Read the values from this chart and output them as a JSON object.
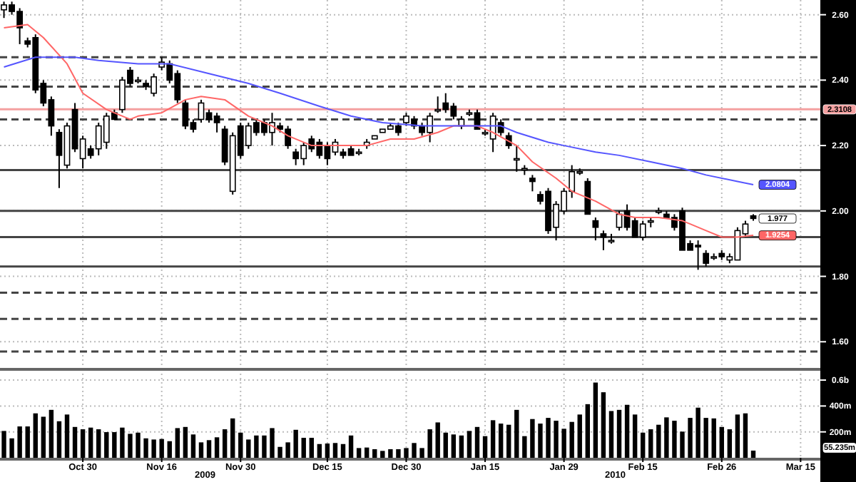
{
  "chart_data": [
    {
      "type": "candlestick",
      "color": "#000000",
      "categories": [
        null,
        null,
        null,
        null,
        null,
        null,
        null,
        null,
        null,
        null,
        null,
        null,
        null,
        null,
        null,
        null,
        null,
        null,
        null,
        null,
        null,
        null,
        null,
        null,
        null,
        null,
        null,
        null,
        null,
        null,
        null,
        null,
        null,
        null,
        null,
        null,
        null,
        null,
        null,
        null,
        null,
        null,
        null,
        null,
        null,
        null,
        null,
        null,
        null,
        null,
        null,
        null,
        null,
        null,
        null,
        null,
        null,
        null,
        null,
        null,
        null,
        null,
        null,
        null,
        null,
        null,
        null,
        null,
        null,
        null,
        null,
        null,
        null,
        null,
        null,
        null,
        null,
        null,
        null,
        null,
        null,
        null,
        null,
        null,
        null,
        null,
        null,
        null,
        null,
        null,
        null,
        null,
        null,
        null,
        null,
        null,
        null,
        null,
        null,
        null,
        null,
        null,
        null,
        null
      ],
      "ohlc": [
        [
          2.615,
          2.64,
          2.59,
          2.63
        ],
        [
          2.63,
          2.64,
          2.6,
          2.61
        ],
        [
          2.61,
          2.62,
          2.51,
          2.56
        ],
        [
          2.52,
          2.53,
          2.5,
          2.51
        ],
        [
          2.53,
          2.54,
          2.36,
          2.37
        ],
        [
          2.39,
          2.4,
          2.32,
          2.33
        ],
        [
          2.34,
          2.35,
          2.23,
          2.26
        ],
        [
          2.24,
          2.25,
          2.07,
          2.17
        ],
        [
          2.14,
          2.27,
          2.13,
          2.26
        ],
        [
          2.31,
          2.33,
          2.18,
          2.19
        ],
        [
          2.16,
          2.23,
          2.13,
          2.22
        ],
        [
          2.19,
          2.2,
          2.16,
          2.17
        ],
        [
          2.19,
          2.27,
          2.17,
          2.26
        ],
        [
          2.21,
          2.3,
          2.19,
          2.29
        ],
        [
          2.3,
          2.31,
          2.28,
          2.28
        ],
        [
          2.31,
          2.41,
          2.3,
          2.4
        ],
        [
          2.43,
          2.44,
          2.38,
          2.39
        ],
        [
          2.4,
          2.41,
          2.39,
          2.4
        ],
        [
          2.39,
          2.4,
          2.37,
          2.38
        ],
        [
          2.36,
          2.42,
          2.35,
          2.41
        ],
        [
          2.44,
          2.47,
          2.43,
          2.455
        ],
        [
          2.45,
          2.46,
          2.39,
          2.4
        ],
        [
          2.42,
          2.43,
          2.33,
          2.34
        ],
        [
          2.33,
          2.34,
          2.25,
          2.26
        ],
        [
          2.27,
          2.28,
          2.24,
          2.25
        ],
        [
          2.28,
          2.34,
          2.27,
          2.33
        ],
        [
          2.3,
          2.31,
          2.27,
          2.28
        ],
        [
          2.29,
          2.3,
          2.24,
          2.27
        ],
        [
          2.25,
          2.26,
          2.14,
          2.15
        ],
        [
          2.06,
          2.24,
          2.05,
          2.23
        ],
        [
          2.26,
          2.27,
          2.16,
          2.17
        ],
        [
          2.2,
          2.27,
          2.19,
          2.26
        ],
        [
          2.27,
          2.28,
          2.23,
          2.24
        ],
        [
          2.27,
          2.28,
          2.23,
          2.24
        ],
        [
          2.24,
          2.3,
          2.2,
          2.27
        ],
        [
          2.26,
          2.27,
          2.24,
          2.25
        ],
        [
          2.25,
          2.26,
          2.19,
          2.2
        ],
        [
          2.18,
          2.19,
          2.14,
          2.16
        ],
        [
          2.16,
          2.21,
          2.14,
          2.2
        ],
        [
          2.22,
          2.23,
          2.18,
          2.19
        ],
        [
          2.21,
          2.22,
          2.16,
          2.17
        ],
        [
          2.2,
          2.21,
          2.14,
          2.16
        ],
        [
          2.18,
          2.22,
          2.17,
          2.21
        ],
        [
          2.18,
          2.19,
          2.16,
          2.17
        ],
        [
          2.19,
          2.2,
          2.17,
          2.17
        ],
        [
          2.18,
          2.19,
          2.17,
          2.18
        ],
        [
          2.2,
          2.22,
          2.19,
          2.21
        ],
        [
          2.22,
          2.23,
          2.22,
          2.23
        ],
        [
          2.24,
          2.25,
          2.24,
          2.25
        ],
        [
          2.25,
          2.27,
          2.25,
          2.26
        ],
        [
          2.26,
          2.27,
          2.23,
          2.24
        ],
        [
          2.27,
          2.3,
          2.26,
          2.29
        ],
        [
          2.28,
          2.29,
          2.25,
          2.26
        ],
        [
          2.26,
          2.27,
          2.23,
          2.24
        ],
        [
          2.24,
          2.3,
          2.21,
          2.29
        ],
        [
          2.31,
          2.35,
          2.3,
          2.31
        ],
        [
          2.33,
          2.36,
          2.3,
          2.31
        ],
        [
          2.32,
          2.33,
          2.28,
          2.29
        ],
        [
          2.26,
          2.29,
          2.25,
          2.28
        ],
        [
          2.3,
          2.31,
          2.29,
          2.3
        ],
        [
          2.3,
          2.31,
          2.25,
          2.25
        ],
        [
          2.24,
          2.25,
          2.23,
          2.24
        ],
        [
          2.22,
          2.3,
          2.18,
          2.29
        ],
        [
          2.27,
          2.28,
          2.23,
          2.24
        ],
        [
          2.23,
          2.24,
          2.19,
          2.2
        ],
        [
          2.16,
          2.2,
          2.12,
          2.16
        ],
        [
          2.13,
          2.14,
          2.11,
          2.13
        ],
        [
          2.1,
          2.11,
          2.06,
          2.09
        ],
        [
          2.05,
          2.06,
          2.02,
          2.03
        ],
        [
          2.06,
          2.07,
          1.93,
          1.94
        ],
        [
          1.95,
          2.03,
          1.91,
          2.02
        ],
        [
          2,
          2.07,
          1.99,
          2.06
        ],
        [
          2.06,
          2.14,
          2.04,
          2.12
        ],
        [
          2.12,
          2.13,
          2.11,
          2.12
        ],
        [
          2.09,
          2.1,
          1.99,
          1.99
        ],
        [
          1.97,
          1.98,
          1.91,
          1.95
        ],
        [
          1.93,
          1.94,
          1.88,
          1.92
        ],
        [
          1.91,
          1.93,
          1.9,
          1.91
        ],
        [
          1.95,
          2,
          1.94,
          1.99
        ],
        [
          2,
          2.02,
          1.94,
          1.95
        ],
        [
          1.97,
          1.98,
          1.92,
          1.92
        ],
        [
          1.92,
          1.97,
          1.91,
          1.96
        ],
        [
          1.97,
          1.98,
          1.95,
          1.97
        ],
        [
          2,
          2.01,
          1.99,
          2
        ],
        [
          1.99,
          2,
          1.98,
          1.98
        ],
        [
          1.98,
          1.99,
          1.94,
          1.95
        ],
        [
          2,
          2.01,
          1.88,
          1.88
        ],
        [
          1.9,
          1.91,
          1.88,
          1.88
        ],
        [
          1.895,
          1.91,
          1.82,
          1.89
        ],
        [
          1.87,
          1.88,
          1.83,
          1.84
        ],
        [
          1.86,
          1.87,
          1.85,
          1.86
        ],
        [
          1.87,
          1.88,
          1.85,
          1.86
        ],
        [
          1.85,
          1.87,
          1.84,
          1.86
        ],
        [
          1.85,
          1.95,
          1.85,
          1.94
        ],
        [
          1.93,
          1.97,
          1.92,
          1.96
        ],
        [
          1.985,
          1.99,
          1.97,
          1.977
        ],
        null,
        null,
        null,
        null,
        null,
        null,
        null,
        null
      ],
      "series": [
        {
          "type": "line",
          "color": "#ff6666",
          "values": [
            2.56,
            null,
            null,
            2.57,
            null,
            2.53,
            null,
            null,
            2.45,
            null,
            2.36,
            null,
            null,
            2.31,
            null,
            null,
            2.28,
            2.29,
            null,
            null,
            2.3,
            null,
            null,
            2.34,
            null,
            2.35,
            null,
            null,
            2.34,
            null,
            null,
            2.29,
            null,
            null,
            2.26,
            null,
            2.23,
            null,
            null,
            2.2,
            null,
            null,
            2.2,
            null,
            2.2,
            null,
            2.2,
            null,
            null,
            2.22,
            null,
            null,
            2.22,
            null,
            null,
            2.24,
            null,
            2.26,
            null,
            null,
            2.26,
            null,
            2.24,
            null,
            null,
            2.2,
            null,
            2.15,
            null,
            null,
            2.1,
            null,
            2.06,
            null,
            null,
            2.03,
            null,
            null,
            1.99,
            null,
            1.98,
            null,
            null,
            1.98,
            null,
            null,
            1.97,
            1.96,
            null,
            1.94,
            null,
            1.92,
            null,
            1.92,
            null,
            1.9254,
            null,
            null,
            null,
            null,
            null,
            null,
            null,
            null
          ],
          "value_labels": [
            null,
            null,
            null,
            null,
            null,
            null,
            null,
            null,
            null,
            null,
            null,
            null,
            null,
            null,
            null,
            null,
            null,
            null,
            null,
            null,
            null,
            null,
            null,
            null,
            null,
            null,
            null,
            null,
            null,
            null,
            null,
            null,
            null,
            null,
            null,
            null,
            null,
            null,
            null,
            null,
            null,
            null,
            null,
            null,
            null,
            null,
            null,
            null,
            null,
            null,
            null,
            null,
            null,
            null,
            null,
            null,
            null,
            null,
            null,
            null,
            null,
            null,
            null,
            null,
            null,
            null,
            null,
            null,
            null,
            null,
            null,
            null,
            null,
            null,
            null,
            null,
            null,
            null,
            null,
            null,
            null,
            null,
            null,
            null,
            null,
            null,
            null,
            null,
            null,
            null,
            null,
            null,
            null,
            null,
            null,
            "1.9254",
            null,
            null,
            null,
            null,
            null,
            null,
            null,
            null
          ]
        },
        {
          "type": "line",
          "color": "#5555ff",
          "values": [
            2.44,
            null,
            null,
            null,
            2.47,
            null,
            null,
            null,
            null,
            2.47,
            null,
            null,
            2.46,
            null,
            null,
            null,
            null,
            2.45,
            null,
            null,
            null,
            2.45,
            null,
            null,
            null,
            null,
            2.42,
            null,
            null,
            null,
            null,
            2.39,
            null,
            null,
            null,
            2.36,
            null,
            null,
            null,
            null,
            2.32,
            null,
            null,
            null,
            2.29,
            null,
            null,
            null,
            2.27,
            null,
            null,
            null,
            null,
            2.26,
            null,
            null,
            null,
            2.26,
            null,
            null,
            null,
            2.26,
            null,
            2.26,
            null,
            2.24,
            null,
            null,
            null,
            2.21,
            null,
            2.2,
            null,
            null,
            null,
            2.18,
            null,
            null,
            2.17,
            null,
            null,
            null,
            2.15,
            null,
            null,
            null,
            2.13,
            null,
            null,
            2.11,
            null,
            null,
            null,
            2.09,
            null,
            2.0804,
            null,
            null,
            null,
            null,
            null,
            null,
            null,
            null
          ],
          "value_labels": [
            null,
            null,
            null,
            null,
            null,
            null,
            null,
            null,
            null,
            null,
            null,
            null,
            null,
            null,
            null,
            null,
            null,
            null,
            null,
            null,
            null,
            null,
            null,
            null,
            null,
            null,
            null,
            null,
            null,
            null,
            null,
            null,
            null,
            null,
            null,
            null,
            null,
            null,
            null,
            null,
            null,
            null,
            null,
            null,
            null,
            null,
            null,
            null,
            null,
            null,
            null,
            null,
            null,
            null,
            null,
            null,
            null,
            null,
            null,
            null,
            null,
            null,
            null,
            null,
            null,
            null,
            null,
            null,
            null,
            null,
            null,
            null,
            null,
            null,
            null,
            null,
            null,
            null,
            null,
            null,
            null,
            null,
            null,
            null,
            null,
            null,
            null,
            null,
            null,
            null,
            null,
            null,
            null,
            null,
            null,
            "2.0804",
            null,
            null,
            null,
            null,
            null,
            null,
            null,
            null
          ]
        }
      ],
      "ylim": [
        1.52,
        2.645
      ],
      "yticks": [
        {
          "value": 1.6,
          "label": "1.60"
        },
        {
          "value": 1.8,
          "label": "1.80"
        },
        {
          "value": 2,
          "label": "2.00"
        },
        {
          "value": 2.2,
          "label": "2.20"
        },
        {
          "value": 2.4,
          "label": "2.40"
        },
        {
          "value": 2.6,
          "label": "2.60"
        }
      ],
      "tick_labels": "y",
      "grid": true,
      "ref_lines": [
        {
          "axis": "y",
          "value": 2.47,
          "line_style": "dashed",
          "color": "#444444"
        },
        {
          "axis": "y",
          "value": 2.38,
          "line_style": "dashed",
          "color": "#444444"
        },
        {
          "axis": "y",
          "value": 2.28,
          "line_style": "dashed",
          "color": "#444444"
        },
        {
          "axis": "y",
          "value": 2.3108,
          "label": "2.3108",
          "line_style": "solid",
          "color": "#f4a0a0"
        },
        {
          "axis": "y",
          "value": 2.125,
          "line_style": "solid",
          "color": "#444444"
        },
        {
          "axis": "y",
          "value": 2.0,
          "line_style": "solid",
          "color": "#444444"
        },
        {
          "axis": "y",
          "value": 1.92,
          "line_style": "solid",
          "color": "#444444"
        },
        {
          "axis": "y",
          "value": 1.83,
          "line_style": "solid",
          "color": "#444444"
        },
        {
          "axis": "y",
          "value": 1.75,
          "line_style": "dashed",
          "color": "#444444"
        },
        {
          "axis": "y",
          "value": 1.67,
          "line_style": "dashed",
          "color": "#444444"
        },
        {
          "axis": "y",
          "value": 1.57,
          "line_style": "dashed",
          "color": "#444444"
        }
      ],
      "value_labels": [
        null,
        null,
        null,
        null,
        null,
        null,
        null,
        null,
        null,
        null,
        null,
        null,
        null,
        null,
        null,
        null,
        null,
        null,
        null,
        null,
        null,
        null,
        null,
        null,
        null,
        null,
        null,
        null,
        null,
        null,
        null,
        null,
        null,
        null,
        null,
        null,
        null,
        null,
        null,
        null,
        null,
        null,
        null,
        null,
        null,
        null,
        null,
        null,
        null,
        null,
        null,
        null,
        null,
        null,
        null,
        null,
        null,
        null,
        null,
        null,
        null,
        null,
        null,
        null,
        null,
        null,
        null,
        null,
        null,
        null,
        null,
        null,
        null,
        null,
        null,
        null,
        null,
        null,
        null,
        null,
        null,
        null,
        null,
        null,
        null,
        null,
        null,
        null,
        null,
        null,
        null,
        null,
        null,
        null,
        null,
        "1.977",
        null,
        null,
        null,
        null,
        null,
        null,
        null,
        null
      ]
    },
    {
      "type": "bar",
      "color": "#000000",
      "categories": [
        null,
        null,
        null,
        null,
        null,
        null,
        null,
        null,
        null,
        null,
        "Oct 30",
        null,
        null,
        null,
        null,
        null,
        null,
        null,
        null,
        null,
        "Nov 16",
        null,
        null,
        null,
        null,
        null,
        null,
        null,
        null,
        null,
        "Nov 30",
        null,
        null,
        null,
        null,
        null,
        null,
        null,
        null,
        null,
        null,
        "Dec 15",
        null,
        null,
        null,
        null,
        null,
        null,
        null,
        null,
        null,
        "Dec 30",
        null,
        null,
        null,
        null,
        null,
        null,
        null,
        null,
        null,
        "Jan 15",
        null,
        null,
        null,
        null,
        null,
        null,
        null,
        null,
        null,
        "Jan 29",
        null,
        null,
        null,
        null,
        null,
        null,
        null,
        null,
        null,
        "Feb 15",
        null,
        null,
        null,
        null,
        null,
        null,
        null,
        null,
        null,
        "Feb 26",
        null,
        null,
        null,
        null,
        null,
        null,
        null,
        null,
        null,
        "Mar 15",
        null,
        null
      ],
      "values": [
        207000000,
        150000000,
        242000000,
        242000000,
        343000000,
        317000000,
        370000000,
        282000000,
        334000000,
        238000000,
        220000000,
        233000000,
        220000000,
        198000000,
        198000000,
        233000000,
        185000000,
        194000000,
        150000000,
        141000000,
        145000000,
        128000000,
        229000000,
        238000000,
        180000000,
        119000000,
        136000000,
        158000000,
        220000000,
        304000000,
        194000000,
        141000000,
        172000000,
        172000000,
        229000000,
        84000000,
        119000000,
        216000000,
        154000000,
        154000000,
        106000000,
        110000000,
        114000000,
        106000000,
        172000000,
        75000000,
        79000000,
        66000000,
        53000000,
        66000000,
        66000000,
        75000000,
        114000000,
        75000000,
        220000000,
        273000000,
        194000000,
        180000000,
        172000000,
        207000000,
        238000000,
        167000000,
        290000000,
        264000000,
        255000000,
        370000000,
        167000000,
        299000000,
        264000000,
        308000000,
        286000000,
        224000000,
        277000000,
        334000000,
        414000000,
        581000000,
        506000000,
        361000000,
        370000000,
        409000000,
        334000000,
        194000000,
        220000000,
        255000000,
        312000000,
        286000000,
        202000000,
        308000000,
        387000000,
        308000000,
        304000000,
        238000000,
        220000000,
        334000000,
        343000000,
        55235000,
        null,
        null,
        null,
        null,
        null,
        null,
        null,
        null
      ],
      "ylim": [
        0,
        650000000
      ],
      "yticks": [
        {
          "value": 200000000,
          "label": "200m"
        },
        {
          "value": 400000000,
          "label": "400m"
        },
        {
          "value": 600000000,
          "label": "0.6b"
        }
      ],
      "grid": true,
      "annotations": [
        "2009",
        "2010",
        "55.235m"
      ]
    }
  ]
}
